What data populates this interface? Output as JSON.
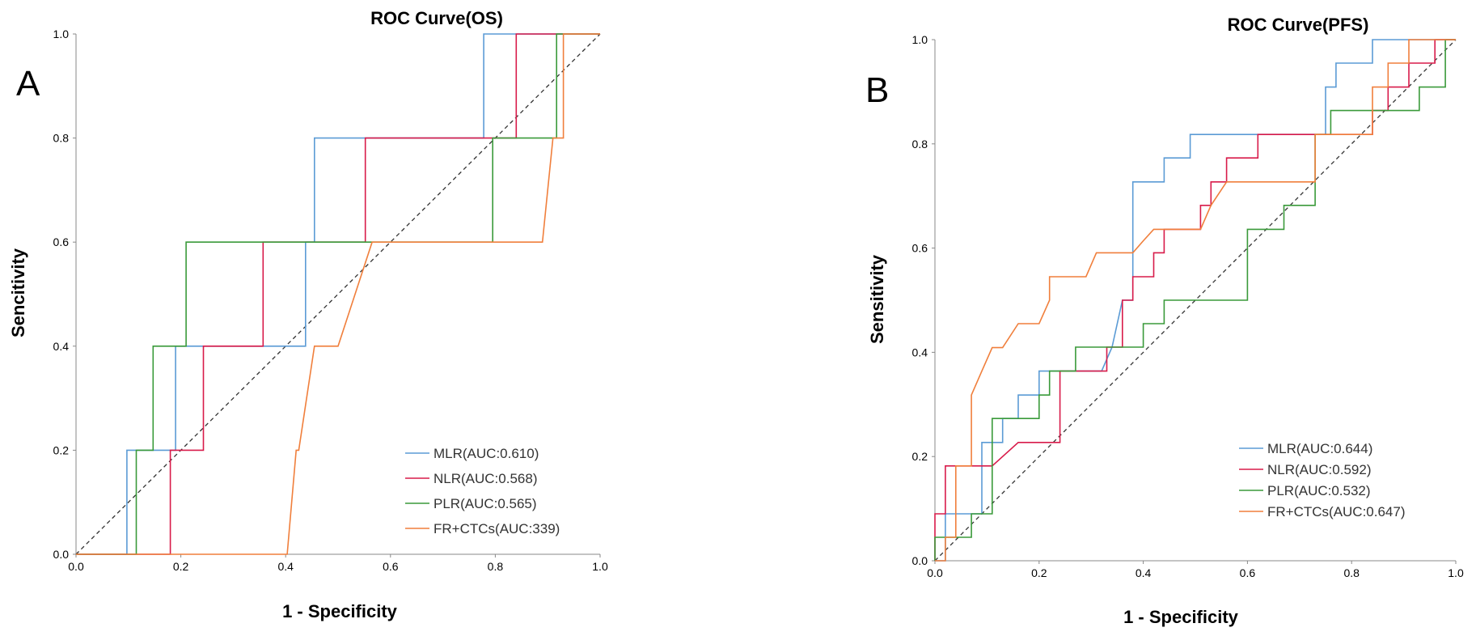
{
  "chart_data": [
    {
      "type": "line",
      "panel_label": "A",
      "title": "ROC Curve(OS)",
      "xlabel": "1 - Specificity",
      "ylabel": "Sencitivity",
      "xlim": [
        0,
        1
      ],
      "ylim": [
        0,
        1
      ],
      "xticks": [
        "0.0",
        "0.2",
        "0.4",
        "0.6",
        "0.8",
        "1.0"
      ],
      "yticks": [
        "0.0",
        "0.2",
        "0.4",
        "0.6",
        "0.8",
        "1.0"
      ],
      "reference_line": "diagonal",
      "legend_position": "bottom-right",
      "series": [
        {
          "name": "MLR(AUC:0.610)",
          "color": "#5b9bd5",
          "x": [
            0,
            0.097,
            0.097,
            0.19,
            0.19,
            0.438,
            0.438,
            0.455,
            0.455,
            0.778,
            0.778,
            1.0
          ],
          "y": [
            0,
            0,
            0.2,
            0.2,
            0.4,
            0.4,
            0.6,
            0.6,
            0.8,
            0.8,
            1.0,
            1.0
          ]
        },
        {
          "name": "NLR(AUC:0.568)",
          "color": "#d81b4a",
          "x": [
            0,
            0.18,
            0.18,
            0.243,
            0.243,
            0.357,
            0.357,
            0.552,
            0.552,
            0.84,
            0.84,
            1.0
          ],
          "y": [
            0,
            0,
            0.2,
            0.2,
            0.4,
            0.4,
            0.6,
            0.6,
            0.8,
            0.8,
            1.0,
            1.0
          ]
        },
        {
          "name": "PLR(AUC:0.565)",
          "color": "#3a9a3a",
          "x": [
            0,
            0.115,
            0.115,
            0.147,
            0.147,
            0.21,
            0.21,
            0.795,
            0.795,
            0.917,
            0.917,
            1.0
          ],
          "y": [
            0,
            0,
            0.2,
            0.2,
            0.4,
            0.4,
            0.6,
            0.6,
            0.8,
            0.8,
            1.0,
            1.0
          ]
        },
        {
          "name": "FR+CTCs(AUC:339)",
          "color": "#f07f3c",
          "x": [
            0,
            0.403,
            0.42,
            0.425,
            0.455,
            0.5,
            0.565,
            0.615,
            0.89,
            0.91,
            0.93,
            0.93,
            1.0
          ],
          "y": [
            0,
            0,
            0.2,
            0.2,
            0.4,
            0.4,
            0.6,
            0.6,
            0.6,
            0.8,
            0.8,
            1.0,
            1.0
          ]
        }
      ]
    },
    {
      "type": "line",
      "panel_label": "B",
      "title": "ROC Curve(PFS)",
      "xlabel": "1 - Specificity",
      "ylabel": "Sensitivity",
      "xlim": [
        0,
        1
      ],
      "ylim": [
        0,
        1
      ],
      "xticks": [
        "0.0",
        "0.2",
        "0.4",
        "0.6",
        "0.8",
        "1.0"
      ],
      "yticks": [
        "0.0",
        "0.2",
        "0.4",
        "0.6",
        "0.8",
        "1.0"
      ],
      "reference_line": "diagonal",
      "legend_position": "bottom-right",
      "series": [
        {
          "name": "MLR(AUC:0.644)",
          "color": "#5b9bd5",
          "x": [
            0,
            0.02,
            0.02,
            0.07,
            0.09,
            0.09,
            0.13,
            0.13,
            0.16,
            0.16,
            0.2,
            0.2,
            0.24,
            0.24,
            0.28,
            0.32,
            0.34,
            0.36,
            0.38,
            0.38,
            0.44,
            0.44,
            0.49,
            0.49,
            0.62,
            0.62,
            0.75,
            0.75,
            0.77,
            0.77,
            0.8,
            0.8,
            0.84,
            0.84,
            0.91,
            0.91,
            1.0
          ],
          "y": [
            0,
            0,
            0.09,
            0.09,
            0.09,
            0.227,
            0.227,
            0.273,
            0.273,
            0.318,
            0.318,
            0.364,
            0.364,
            0.364,
            0.364,
            0.364,
            0.41,
            0.5,
            0.5,
            0.727,
            0.727,
            0.773,
            0.773,
            0.818,
            0.818,
            0.818,
            0.818,
            0.909,
            0.909,
            0.955,
            0.955,
            0.955,
            0.955,
            1.0,
            1.0,
            1.0,
            1.0
          ]
        },
        {
          "name": "NLR(AUC:0.592)",
          "color": "#d81b4a",
          "x": [
            0,
            0,
            0.02,
            0.02,
            0.11,
            0.11,
            0.16,
            0.2,
            0.24,
            0.24,
            0.31,
            0.31,
            0.33,
            0.33,
            0.36,
            0.36,
            0.38,
            0.38,
            0.42,
            0.42,
            0.44,
            0.44,
            0.47,
            0.47,
            0.51,
            0.51,
            0.53,
            0.53,
            0.56,
            0.56,
            0.62,
            0.62,
            0.73,
            0.73,
            0.84,
            0.84,
            0.87,
            0.87,
            0.91,
            0.91,
            0.96,
            0.96,
            1.0
          ],
          "y": [
            0,
            0.09,
            0.09,
            0.182,
            0.182,
            0.182,
            0.227,
            0.227,
            0.227,
            0.364,
            0.364,
            0.364,
            0.364,
            0.41,
            0.41,
            0.5,
            0.5,
            0.545,
            0.545,
            0.591,
            0.591,
            0.636,
            0.636,
            0.636,
            0.636,
            0.682,
            0.682,
            0.727,
            0.727,
            0.773,
            0.773,
            0.818,
            0.818,
            0.818,
            0.818,
            0.864,
            0.864,
            0.909,
            0.909,
            0.955,
            0.955,
            1.0,
            1.0
          ]
        },
        {
          "name": "PLR(AUC:0.532)",
          "color": "#3a9a3a",
          "x": [
            0,
            0,
            0.04,
            0.04,
            0.07,
            0.07,
            0.11,
            0.11,
            0.16,
            0.16,
            0.2,
            0.2,
            0.22,
            0.22,
            0.27,
            0.27,
            0.36,
            0.36,
            0.4,
            0.4,
            0.44,
            0.44,
            0.6,
            0.6,
            0.67,
            0.67,
            0.69,
            0.69,
            0.73,
            0.73,
            0.76,
            0.76,
            0.8,
            0.8,
            0.87,
            0.87,
            0.93,
            0.93,
            0.98,
            0.98,
            1.0
          ],
          "y": [
            0,
            0.045,
            0.045,
            0.045,
            0.045,
            0.09,
            0.09,
            0.273,
            0.273,
            0.273,
            0.273,
            0.318,
            0.318,
            0.364,
            0.364,
            0.41,
            0.41,
            0.41,
            0.41,
            0.455,
            0.455,
            0.5,
            0.5,
            0.636,
            0.636,
            0.682,
            0.682,
            0.682,
            0.682,
            0.818,
            0.818,
            0.864,
            0.864,
            0.864,
            0.864,
            0.864,
            0.864,
            0.909,
            0.909,
            1.0,
            1.0
          ]
        },
        {
          "name": "FR+CTCs(AUC:0.647)",
          "color": "#f07f3c",
          "x": [
            0,
            0.02,
            0.02,
            0.04,
            0.04,
            0.07,
            0.07,
            0.09,
            0.11,
            0.13,
            0.16,
            0.16,
            0.2,
            0.22,
            0.22,
            0.27,
            0.29,
            0.31,
            0.33,
            0.36,
            0.38,
            0.4,
            0.42,
            0.44,
            0.47,
            0.49,
            0.51,
            0.53,
            0.56,
            0.56,
            0.62,
            0.67,
            0.73,
            0.73,
            0.8,
            0.8,
            0.84,
            0.84,
            0.87,
            0.87,
            0.91,
            0.91,
            1.0
          ],
          "y": [
            0,
            0,
            0.045,
            0.045,
            0.182,
            0.182,
            0.318,
            0.364,
            0.409,
            0.409,
            0.455,
            0.455,
            0.455,
            0.5,
            0.545,
            0.545,
            0.545,
            0.591,
            0.591,
            0.591,
            0.591,
            0.614,
            0.636,
            0.636,
            0.636,
            0.636,
            0.636,
            0.682,
            0.727,
            0.727,
            0.727,
            0.727,
            0.727,
            0.818,
            0.818,
            0.818,
            0.818,
            0.909,
            0.909,
            0.955,
            0.955,
            1.0,
            1.0
          ]
        }
      ]
    }
  ]
}
